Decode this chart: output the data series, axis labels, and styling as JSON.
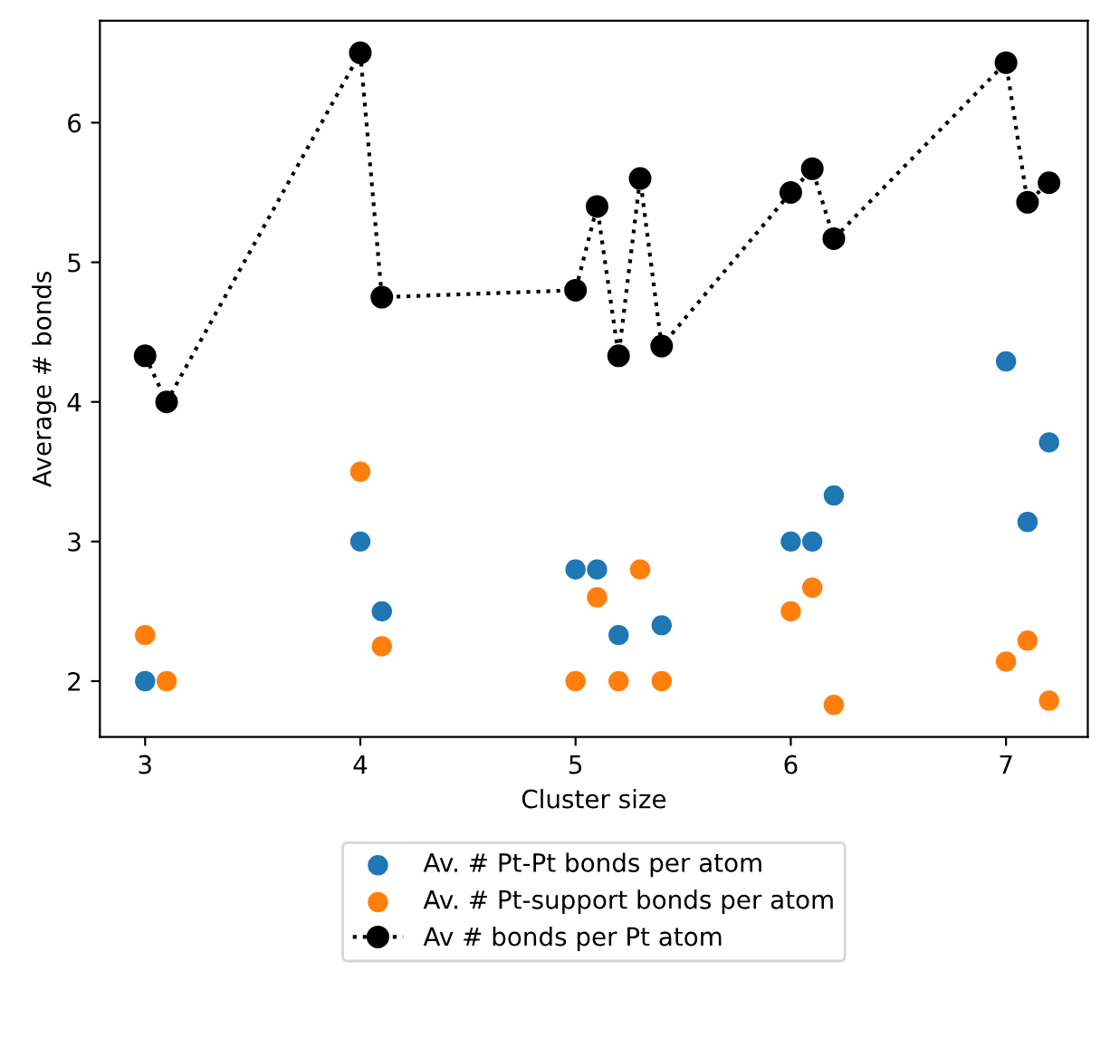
{
  "chart_data": {
    "type": "scatter",
    "xlabel": "Cluster size",
    "ylabel": "Average # bonds",
    "x": [
      3,
      3.1,
      4,
      4.1,
      5,
      5.1,
      5.2,
      5.3,
      5.4,
      6,
      6.1,
      6.2,
      7,
      7.1,
      7.2
    ],
    "series": [
      {
        "name": "Av. # Pt-Pt bonds per atom",
        "color": "#1f77b4",
        "values": [
          2,
          null,
          3,
          2.5,
          2.8,
          2.8,
          2.33,
          null,
          2.4,
          3,
          3,
          3.33,
          4.29,
          3.14,
          3.71
        ]
      },
      {
        "name": "Av. # Pt-support bonds per atom",
        "color": "#ff7f0e",
        "values": [
          2.33,
          2,
          3.5,
          2.25,
          2,
          2.6,
          2,
          2.8,
          2,
          2.5,
          2.67,
          1.83,
          2.14,
          2.29,
          1.86
        ]
      },
      {
        "name": "Av # bonds per Pt atom",
        "color": "#000000",
        "type": "line",
        "marker": "circle",
        "line_style": "dotted",
        "values": [
          4.33,
          4,
          6.5,
          4.75,
          4.8,
          5.4,
          4.33,
          5.6,
          4.4,
          5.5,
          5.67,
          5.17,
          6.43,
          5.43,
          5.57
        ]
      }
    ],
    "xlim": [
      2.79,
      7.38
    ],
    "ylim": [
      1.6,
      6.73
    ],
    "xticks": [
      3,
      4,
      5,
      6,
      7
    ],
    "yticks": [
      2,
      3,
      4,
      5,
      6
    ],
    "grid": false,
    "legend": "bottom",
    "marker": "circle"
  }
}
